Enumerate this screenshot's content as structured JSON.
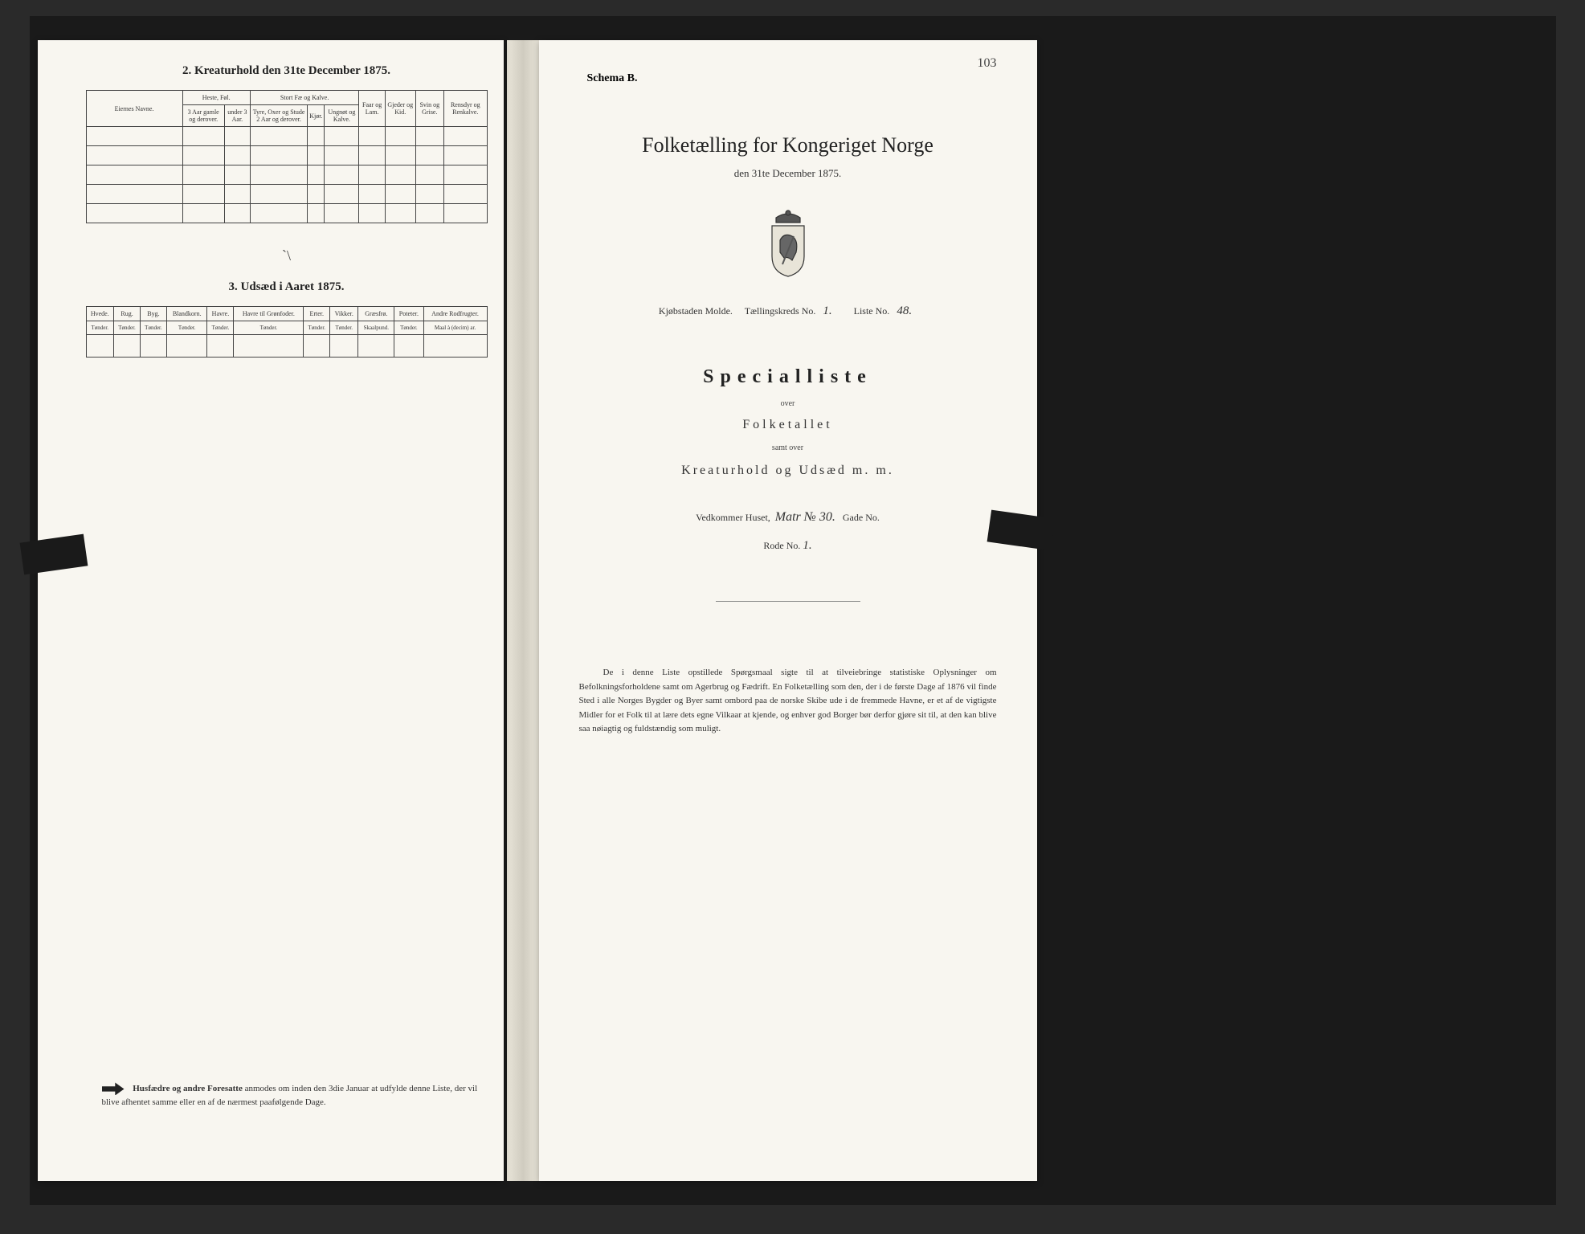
{
  "left": {
    "section2_title": "2. Kreaturhold den 31te December 1875.",
    "table1": {
      "col_eier": "Eiernes Navne.",
      "group_heste": "Heste, Føl.",
      "group_stort": "Stort Fæ og Kalve.",
      "col_faar": "Faar og Lam.",
      "col_gjeder": "Gjeder og Kid.",
      "col_svin": "Svin og Grise.",
      "col_ren": "Rensdyr og Renkalve.",
      "sub_heste1": "3 Aar gamle og derover.",
      "sub_heste2": "under 3 Aar.",
      "sub_stort1": "Tyre, Oxer og Stude 2 Aar og derover.",
      "sub_stort2": "Kjør.",
      "sub_stort3": "Ungnøt og Kalve."
    },
    "tilde": "`\\",
    "section3_title": "3. Udsæd i Aaret 1875.",
    "table2": {
      "cols": [
        "Hvede.",
        "Rug.",
        "Byg.",
        "Blandkorn.",
        "Havre.",
        "Havre til Grønfoder.",
        "Erter.",
        "Vikker.",
        "Græsfrø.",
        "Poteter.",
        "Andre Rodfrugter."
      ],
      "units": [
        "Tønder.",
        "Tønder.",
        "Tønder.",
        "Tønder.",
        "Tønder.",
        "Tønder.",
        "Tønder.",
        "Tønder.",
        "Skaalpund.",
        "Tønder.",
        "Maal à (decim) ar."
      ]
    },
    "bottom_note_bold": "Husfædre og andre Foresatte",
    "bottom_note_rest": " anmodes om inden den 3die Januar at udfylde denne Liste, der vil blive afhentet samme eller en af de nærmest paafølgende Dage."
  },
  "right": {
    "page_number": "103",
    "schema": "Schema B.",
    "title": "Folketælling for Kongeriget Norge",
    "subtitle": "den 31te December 1875.",
    "info_prefix": "Kjøbstaden Molde.",
    "info_kreds_label": "Tællingskreds No.",
    "info_kreds_value": "1.",
    "info_liste_label": "Liste No.",
    "info_liste_value": "48.",
    "specialliste": "Specialliste",
    "over": "over",
    "folketallet": "Folketallet",
    "samt_over": "samt over",
    "kreatur": "Kreaturhold og Udsæd m. m.",
    "house_label": "Vedkommer Huset,",
    "house_value": "Matr № 30.",
    "gade_label": "Gade No.",
    "rode_label": "Rode No.",
    "rode_value": "1.",
    "bottom_para": "De i denne Liste opstillede Spørgsmaal sigte til at tilveiebringe statistiske Oplysninger om Befolkningsforholdene samt om Agerbrug og Fædrift. En Folketælling som den, der i de første Dage af 1876 vil finde Sted i alle Norges Bygder og Byer samt ombord paa de norske Skibe ude i de fremmede Havne, er et af de vigtigste Midler for et Folk til at lære dets egne Vilkaar at kjende, og enhver god Borger bør derfor gjøre sit til, at den kan blive saa nøiagtig og fuldstændig som muligt."
  },
  "colors": {
    "paper": "#f8f6f0",
    "ink": "#222222",
    "border": "#444444",
    "bg": "#2a2a2a"
  }
}
